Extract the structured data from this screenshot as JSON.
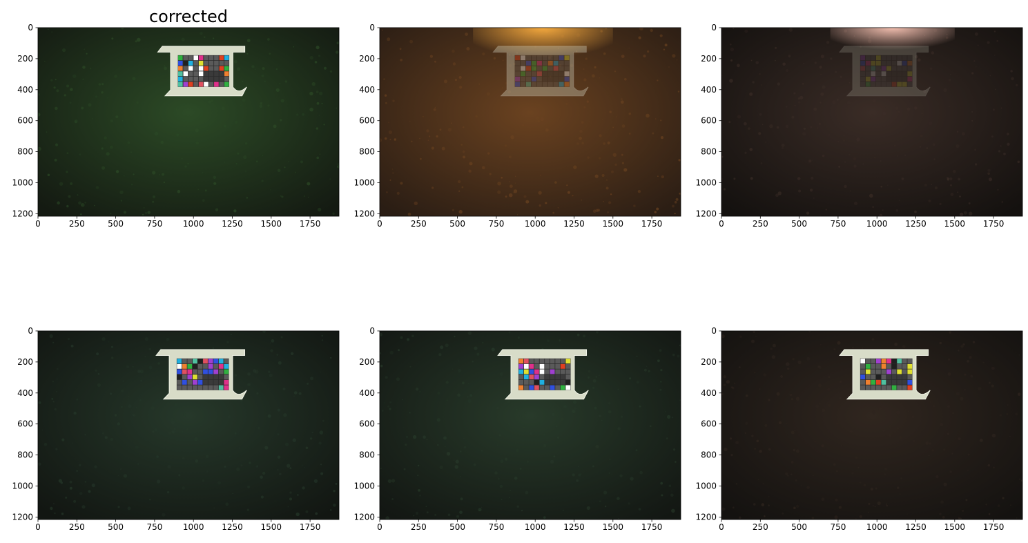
{
  "figure": {
    "background": "#ffffff"
  },
  "chart_data": [
    {
      "type": "image",
      "title": "corrected",
      "xlim": [
        0,
        1936
      ],
      "ylim": [
        1216,
        0
      ],
      "xticks": [
        0,
        250,
        500,
        750,
        1000,
        1250,
        1500,
        1750
      ],
      "yticks": [
        0,
        200,
        400,
        600,
        800,
        1000,
        1200
      ],
      "xticklabels": [
        "0",
        "250",
        "500",
        "750",
        "1000",
        "1250",
        "1500",
        "1750"
      ],
      "yticklabels": [
        "0",
        "200",
        "400",
        "600",
        "800",
        "1000",
        "1200"
      ],
      "image": {
        "content": "underwater seabed photo with colour calibration target",
        "background_color": "#141a12",
        "tint_color": "#2c4a26",
        "target": {
          "present": true,
          "x_range": [
            770,
            1360
          ],
          "y_range": [
            120,
            440
          ],
          "brightness": "bright"
        },
        "glare": {
          "present": false
        }
      }
    },
    {
      "type": "image",
      "title": "",
      "xlim": [
        0,
        1936
      ],
      "ylim": [
        1216,
        0
      ],
      "xticks": [
        0,
        250,
        500,
        750,
        1000,
        1250,
        1500,
        1750
      ],
      "yticks": [
        0,
        200,
        400,
        600,
        800,
        1000,
        1200
      ],
      "xticklabels": [
        "0",
        "250",
        "500",
        "750",
        "1000",
        "1250",
        "1500",
        "1750"
      ],
      "yticklabels": [
        "0",
        "200",
        "400",
        "600",
        "800",
        "1000",
        "1200"
      ],
      "image": {
        "content": "underwater seabed photo with orange glare and faint calibration target",
        "background_color": "#2a1d14",
        "tint_color": "#6a4220",
        "target": {
          "present": true,
          "x_range": [
            730,
            1360
          ],
          "y_range": [
            120,
            440
          ],
          "brightness": "faint"
        },
        "glare": {
          "present": true,
          "color": "#ffb040",
          "x_range": [
            600,
            1500
          ],
          "y_range": [
            0,
            200
          ]
        }
      }
    },
    {
      "type": "image",
      "title": "",
      "xlim": [
        0,
        1936
      ],
      "ylim": [
        1216,
        0
      ],
      "xticks": [
        0,
        250,
        500,
        750,
        1000,
        1250,
        1500,
        1750
      ],
      "yticks": [
        0,
        200,
        400,
        600,
        800,
        1000,
        1200
      ],
      "xticklabels": [
        "0",
        "250",
        "500",
        "750",
        "1000",
        "1250",
        "1500",
        "1750"
      ],
      "yticklabels": [
        "0",
        "200",
        "400",
        "600",
        "800",
        "1000",
        "1200"
      ],
      "image": {
        "content": "dark underwater seabed photo with pinkish glare and very faint calibration target",
        "background_color": "#14110f",
        "tint_color": "#3a2c26",
        "target": {
          "present": true,
          "x_range": [
            760,
            1360
          ],
          "y_range": [
            120,
            440
          ],
          "brightness": "very faint"
        },
        "glare": {
          "present": true,
          "color": "#ffc8b8",
          "x_range": [
            700,
            1500
          ],
          "y_range": [
            0,
            150
          ]
        }
      }
    },
    {
      "type": "image",
      "title": "",
      "xlim": [
        0,
        1936
      ],
      "ylim": [
        1216,
        0
      ],
      "xticks": [
        0,
        250,
        500,
        750,
        1000,
        1250,
        1500,
        1750
      ],
      "yticks": [
        0,
        200,
        400,
        600,
        800,
        1000,
        1200
      ],
      "xticklabels": [
        "0",
        "250",
        "500",
        "750",
        "1000",
        "1250",
        "1500",
        "1750"
      ],
      "yticklabels": [
        "0",
        "200",
        "400",
        "600",
        "800",
        "1000",
        "1200"
      ],
      "image": {
        "content": "underwater seabed photo with bright calibration target",
        "background_color": "#121612",
        "tint_color": "#26382a",
        "target": {
          "present": true,
          "x_range": [
            760,
            1360
          ],
          "y_range": [
            120,
            440
          ],
          "brightness": "bright"
        },
        "glare": {
          "present": false
        }
      }
    },
    {
      "type": "image",
      "title": "",
      "xlim": [
        0,
        1936
      ],
      "ylim": [
        1216,
        0
      ],
      "xticks": [
        0,
        250,
        500,
        750,
        1000,
        1250,
        1500,
        1750
      ],
      "yticks": [
        0,
        200,
        400,
        600,
        800,
        1000,
        1200
      ],
      "xticklabels": [
        "0",
        "250",
        "500",
        "750",
        "1000",
        "1250",
        "1500",
        "1750"
      ],
      "yticklabels": [
        "0",
        "200",
        "400",
        "600",
        "800",
        "1000",
        "1200"
      ],
      "image": {
        "content": "underwater seabed photo with bright calibration target",
        "background_color": "#131713",
        "tint_color": "#283a2a",
        "target": {
          "present": true,
          "x_range": [
            760,
            1360
          ],
          "y_range": [
            120,
            440
          ],
          "brightness": "bright"
        },
        "glare": {
          "present": false
        }
      }
    },
    {
      "type": "image",
      "title": "",
      "xlim": [
        0,
        1936
      ],
      "ylim": [
        1216,
        0
      ],
      "xticks": [
        0,
        250,
        500,
        750,
        1000,
        1250,
        1500,
        1750
      ],
      "yticks": [
        0,
        200,
        400,
        600,
        800,
        1000,
        1200
      ],
      "xticklabels": [
        "0",
        "250",
        "500",
        "750",
        "1000",
        "1250",
        "1500",
        "1750"
      ],
      "yticklabels": [
        "0",
        "200",
        "400",
        "600",
        "800",
        "1000",
        "1200"
      ],
      "image": {
        "content": "dark underwater seabed photo with bright calibration target",
        "background_color": "#141210",
        "tint_color": "#30261f",
        "target": {
          "present": true,
          "x_range": [
            760,
            1360
          ],
          "y_range": [
            120,
            440
          ],
          "brightness": "bright"
        },
        "glare": {
          "present": false
        }
      }
    }
  ]
}
